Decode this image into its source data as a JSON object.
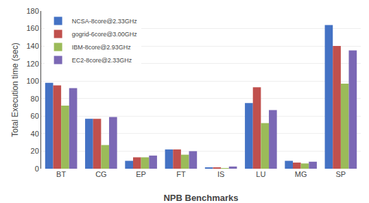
{
  "chart_data": {
    "type": "bar",
    "categories": [
      "BT",
      "CG",
      "EP",
      "FT",
      "IS",
      "LU",
      "MG",
      "SP"
    ],
    "series": [
      {
        "name": "NCSA-8core@2.33GHz",
        "color": "#4472C4",
        "values": [
          98,
          57,
          9,
          22,
          1.5,
          75,
          9,
          164
        ]
      },
      {
        "name": "gogrid-6core@3.00GHz",
        "color": "#C0504D",
        "values": [
          95,
          57,
          13,
          22,
          1.5,
          93,
          7,
          140
        ]
      },
      {
        "name": "IBM-8core@2.93GHz",
        "color": "#9BBB59",
        "values": [
          72,
          27,
          13,
          16,
          0.5,
          52,
          6,
          97
        ]
      },
      {
        "name": "EC2-8core@2.33GHz",
        "color": "#7B68B5",
        "values": [
          92,
          59,
          15,
          20,
          2.5,
          67,
          8,
          135
        ]
      }
    ],
    "xlabel": "NPB Benchmarks",
    "ylabel": "Total Execution time (sec)",
    "ylim": [
      0,
      180
    ],
    "yticks": [
      0,
      20,
      40,
      60,
      80,
      100,
      120,
      140,
      160,
      180
    ],
    "grid": true,
    "legend": "upper left"
  }
}
